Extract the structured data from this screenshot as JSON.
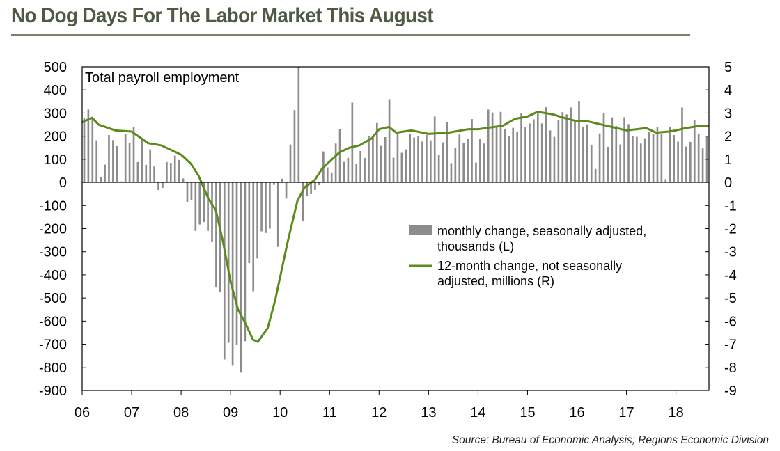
{
  "title": "No Dog Days For The Labor Market This August",
  "source": "Source: Bureau of Economic Analysis; Regions Economic Division",
  "colors": {
    "title": "#4f5a43",
    "rule": "#7c7e6e",
    "bars": "#8c8c8c",
    "line": "#5c8a1c",
    "axis": "#000000"
  },
  "chart_data": {
    "type": "bar",
    "title": "",
    "inner_label": "Total payroll employment",
    "xlabel": "",
    "ylabel": "",
    "x_tick_labels": [
      "06",
      "07",
      "08",
      "09",
      "10",
      "11",
      "12",
      "13",
      "14",
      "15",
      "16",
      "17",
      "18"
    ],
    "x_range": [
      2006.0,
      2018.667
    ],
    "left_axis": {
      "ylim": [
        -900,
        500
      ],
      "ticks": [
        500,
        400,
        300,
        200,
        100,
        0,
        -100,
        -200,
        -300,
        -400,
        -500,
        -600,
        -700,
        -800,
        -900
      ]
    },
    "right_axis": {
      "ylim": [
        -9,
        5
      ],
      "ticks": [
        5,
        4,
        3,
        2,
        1,
        0,
        -1,
        -2,
        -3,
        -4,
        -5,
        -6,
        -7,
        -8,
        -9
      ]
    },
    "grid": false,
    "legend_placement": "center-right",
    "series": [
      {
        "name": "monthly change, seasonally adjusted, thousands (L)",
        "type": "bar",
        "axis": "left",
        "start": "2006-01",
        "values": [
          277,
          315,
          280,
          182,
          23,
          77,
          205,
          183,
          157,
          4,
          208,
          171,
          238,
          88,
          188,
          76,
          143,
          69,
          -33,
          -24,
          88,
          84,
          116,
          97,
          17,
          -84,
          -78,
          -210,
          -182,
          -172,
          -210,
          -259,
          -452,
          -474,
          -766,
          -694,
          -793,
          -702,
          -823,
          -687,
          -349,
          -471,
          -329,
          -212,
          -219,
          -200,
          -11,
          -279,
          16,
          -70,
          164,
          313,
          500,
          -166,
          -58,
          -51,
          -33,
          -12,
          134,
          65,
          43,
          168,
          229,
          89,
          106,
          345,
          80,
          136,
          106,
          199,
          193,
          257,
          158,
          196,
          360,
          107,
          216,
          128,
          143,
          210,
          194,
          200,
          177,
          206,
          182,
          285,
          119,
          173,
          262,
          83,
          151,
          207,
          171,
          190,
          274,
          86,
          187,
          168,
          315,
          302,
          242,
          305,
          232,
          201,
          236,
          217,
          300,
          241,
          255,
          273,
          308,
          255,
          325,
          225,
          197,
          270,
          304,
          294,
          324,
          266,
          352,
          238,
          251,
          163,
          58,
          212,
          301,
          154,
          281,
          244,
          164,
          282,
          252,
          199,
          197,
          168,
          191,
          220,
          210,
          241,
          208,
          14,
          240,
          205,
          176,
          324,
          155,
          175,
          268,
          208,
          147,
          201
        ]
      },
      {
        "name": "12-month change, not seasonally adjusted, millions (R)",
        "type": "line",
        "axis": "right",
        "points": [
          [
            2006.0,
            2.6
          ],
          [
            2006.2,
            2.8
          ],
          [
            2006.33,
            2.5
          ],
          [
            2006.67,
            2.25
          ],
          [
            2007.0,
            2.2
          ],
          [
            2007.33,
            1.7
          ],
          [
            2007.6,
            1.6
          ],
          [
            2007.8,
            1.4
          ],
          [
            2008.0,
            1.2
          ],
          [
            2008.2,
            0.8
          ],
          [
            2008.35,
            0.3
          ],
          [
            2008.55,
            -0.7
          ],
          [
            2008.7,
            -1.2
          ],
          [
            2008.85,
            -2.6
          ],
          [
            2009.0,
            -4.3
          ],
          [
            2009.15,
            -5.5
          ],
          [
            2009.3,
            -6.1
          ],
          [
            2009.45,
            -6.8
          ],
          [
            2009.55,
            -6.9
          ],
          [
            2009.75,
            -6.3
          ],
          [
            2009.9,
            -5.1
          ],
          [
            2010.0,
            -4.1
          ],
          [
            2010.15,
            -2.6
          ],
          [
            2010.35,
            -0.8
          ],
          [
            2010.5,
            -0.2
          ],
          [
            2010.7,
            0.1
          ],
          [
            2010.85,
            0.6
          ],
          [
            2011.0,
            0.9
          ],
          [
            2011.2,
            1.3
          ],
          [
            2011.4,
            1.5
          ],
          [
            2011.6,
            1.6
          ],
          [
            2011.85,
            1.9
          ],
          [
            2012.0,
            2.3
          ],
          [
            2012.2,
            2.4
          ],
          [
            2012.35,
            2.15
          ],
          [
            2012.65,
            2.25
          ],
          [
            2013.0,
            2.1
          ],
          [
            2013.4,
            2.15
          ],
          [
            2013.8,
            2.3
          ],
          [
            2014.0,
            2.3
          ],
          [
            2014.5,
            2.45
          ],
          [
            2014.75,
            2.75
          ],
          [
            2015.0,
            2.85
          ],
          [
            2015.2,
            3.05
          ],
          [
            2015.5,
            2.95
          ],
          [
            2015.8,
            2.75
          ],
          [
            2016.0,
            2.65
          ],
          [
            2016.2,
            2.65
          ],
          [
            2016.5,
            2.5
          ],
          [
            2016.8,
            2.35
          ],
          [
            2017.0,
            2.25
          ],
          [
            2017.4,
            2.35
          ],
          [
            2017.6,
            2.15
          ],
          [
            2017.85,
            2.2
          ],
          [
            2018.0,
            2.25
          ],
          [
            2018.2,
            2.35
          ],
          [
            2018.5,
            2.45
          ],
          [
            2018.67,
            2.45
          ]
        ]
      }
    ]
  }
}
